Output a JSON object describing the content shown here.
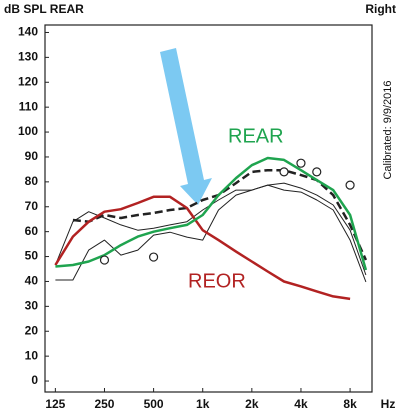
{
  "chart_data": {
    "type": "line",
    "title": "dB SPL REAR",
    "subtitle": "Right",
    "annotation": "Calibrated: 9/9/2016",
    "xlabel": "Hz",
    "log_x": true,
    "x": [
      125,
      160,
      200,
      250,
      315,
      400,
      500,
      630,
      800,
      1000,
      1250,
      1600,
      2000,
      2500,
      3150,
      4000,
      5000,
      6300,
      8000,
      10000
    ],
    "xlim": [
      108,
      10900
    ],
    "xticks": [
      125,
      250,
      500,
      {
        "value": 1000,
        "label": "1k"
      },
      {
        "value": 2000,
        "label": "2k"
      },
      {
        "value": 4000,
        "label": "4k"
      },
      {
        "value": 8000,
        "label": "8k"
      }
    ],
    "ylim": [
      -4.4,
      143
    ],
    "yticks": [
      0,
      10,
      20,
      30,
      40,
      50,
      60,
      70,
      80,
      90,
      100,
      110,
      120,
      130,
      140
    ],
    "grid": false,
    "series": [
      {
        "color": "#222222",
        "width": 1,
        "dash": false,
        "values": [
          46.6,
          64,
          68,
          65.5,
          62.7,
          60.6,
          61.4,
          62.7,
          64,
          68.7,
          72.7,
          76.7,
          76.7,
          78.7,
          79.5,
          77.5,
          74.7,
          70.7,
          60.6,
          42.6
        ]
      },
      {
        "color": "#222222",
        "width": 1,
        "dash": false,
        "values": [
          40.6,
          40.6,
          52.6,
          56.6,
          50.6,
          52.6,
          58.6,
          59.8,
          57.8,
          56.6,
          68.7,
          74.7,
          76.7,
          78.7,
          76.7,
          75.9,
          72.7,
          68.7,
          56.6,
          39.8
        ]
      },
      {
        "color": "#222222",
        "width": 2.5,
        "dash": true,
        "values": [
          null,
          64.7,
          64,
          66.7,
          65.5,
          66.7,
          67.5,
          68.7,
          69.5,
          72.7,
          74.7,
          79.5,
          84,
          84.7,
          84.7,
          82.7,
          80.7,
          74.7,
          62.7,
          48.6
        ]
      },
      {
        "name": "REOR",
        "color": "#b22222",
        "width": 2.5,
        "dash": false,
        "values": [
          46.6,
          58,
          64,
          68,
          69,
          71.5,
          74,
          74,
          69.5,
          60.6,
          56.6,
          52,
          48,
          44,
          40,
          38,
          36,
          34,
          33,
          null
        ]
      },
      {
        "name": "REAR",
        "color": "#1fa44f",
        "width": 2.5,
        "dash": false,
        "values": [
          46,
          46.6,
          48,
          50.6,
          54.6,
          58,
          60,
          61.4,
          62.7,
          66.7,
          74.7,
          81.5,
          86.7,
          89.6,
          88.8,
          84.7,
          80.7,
          76.7,
          66.7,
          44.6
        ]
      },
      {
        "color": "#222222",
        "marker": "circle",
        "values": [
          null,
          null,
          null,
          48.6,
          null,
          null,
          49.8,
          null,
          null,
          null,
          null,
          null,
          null,
          null,
          84,
          87.5,
          84,
          null,
          78.7,
          null
        ]
      }
    ]
  }
}
